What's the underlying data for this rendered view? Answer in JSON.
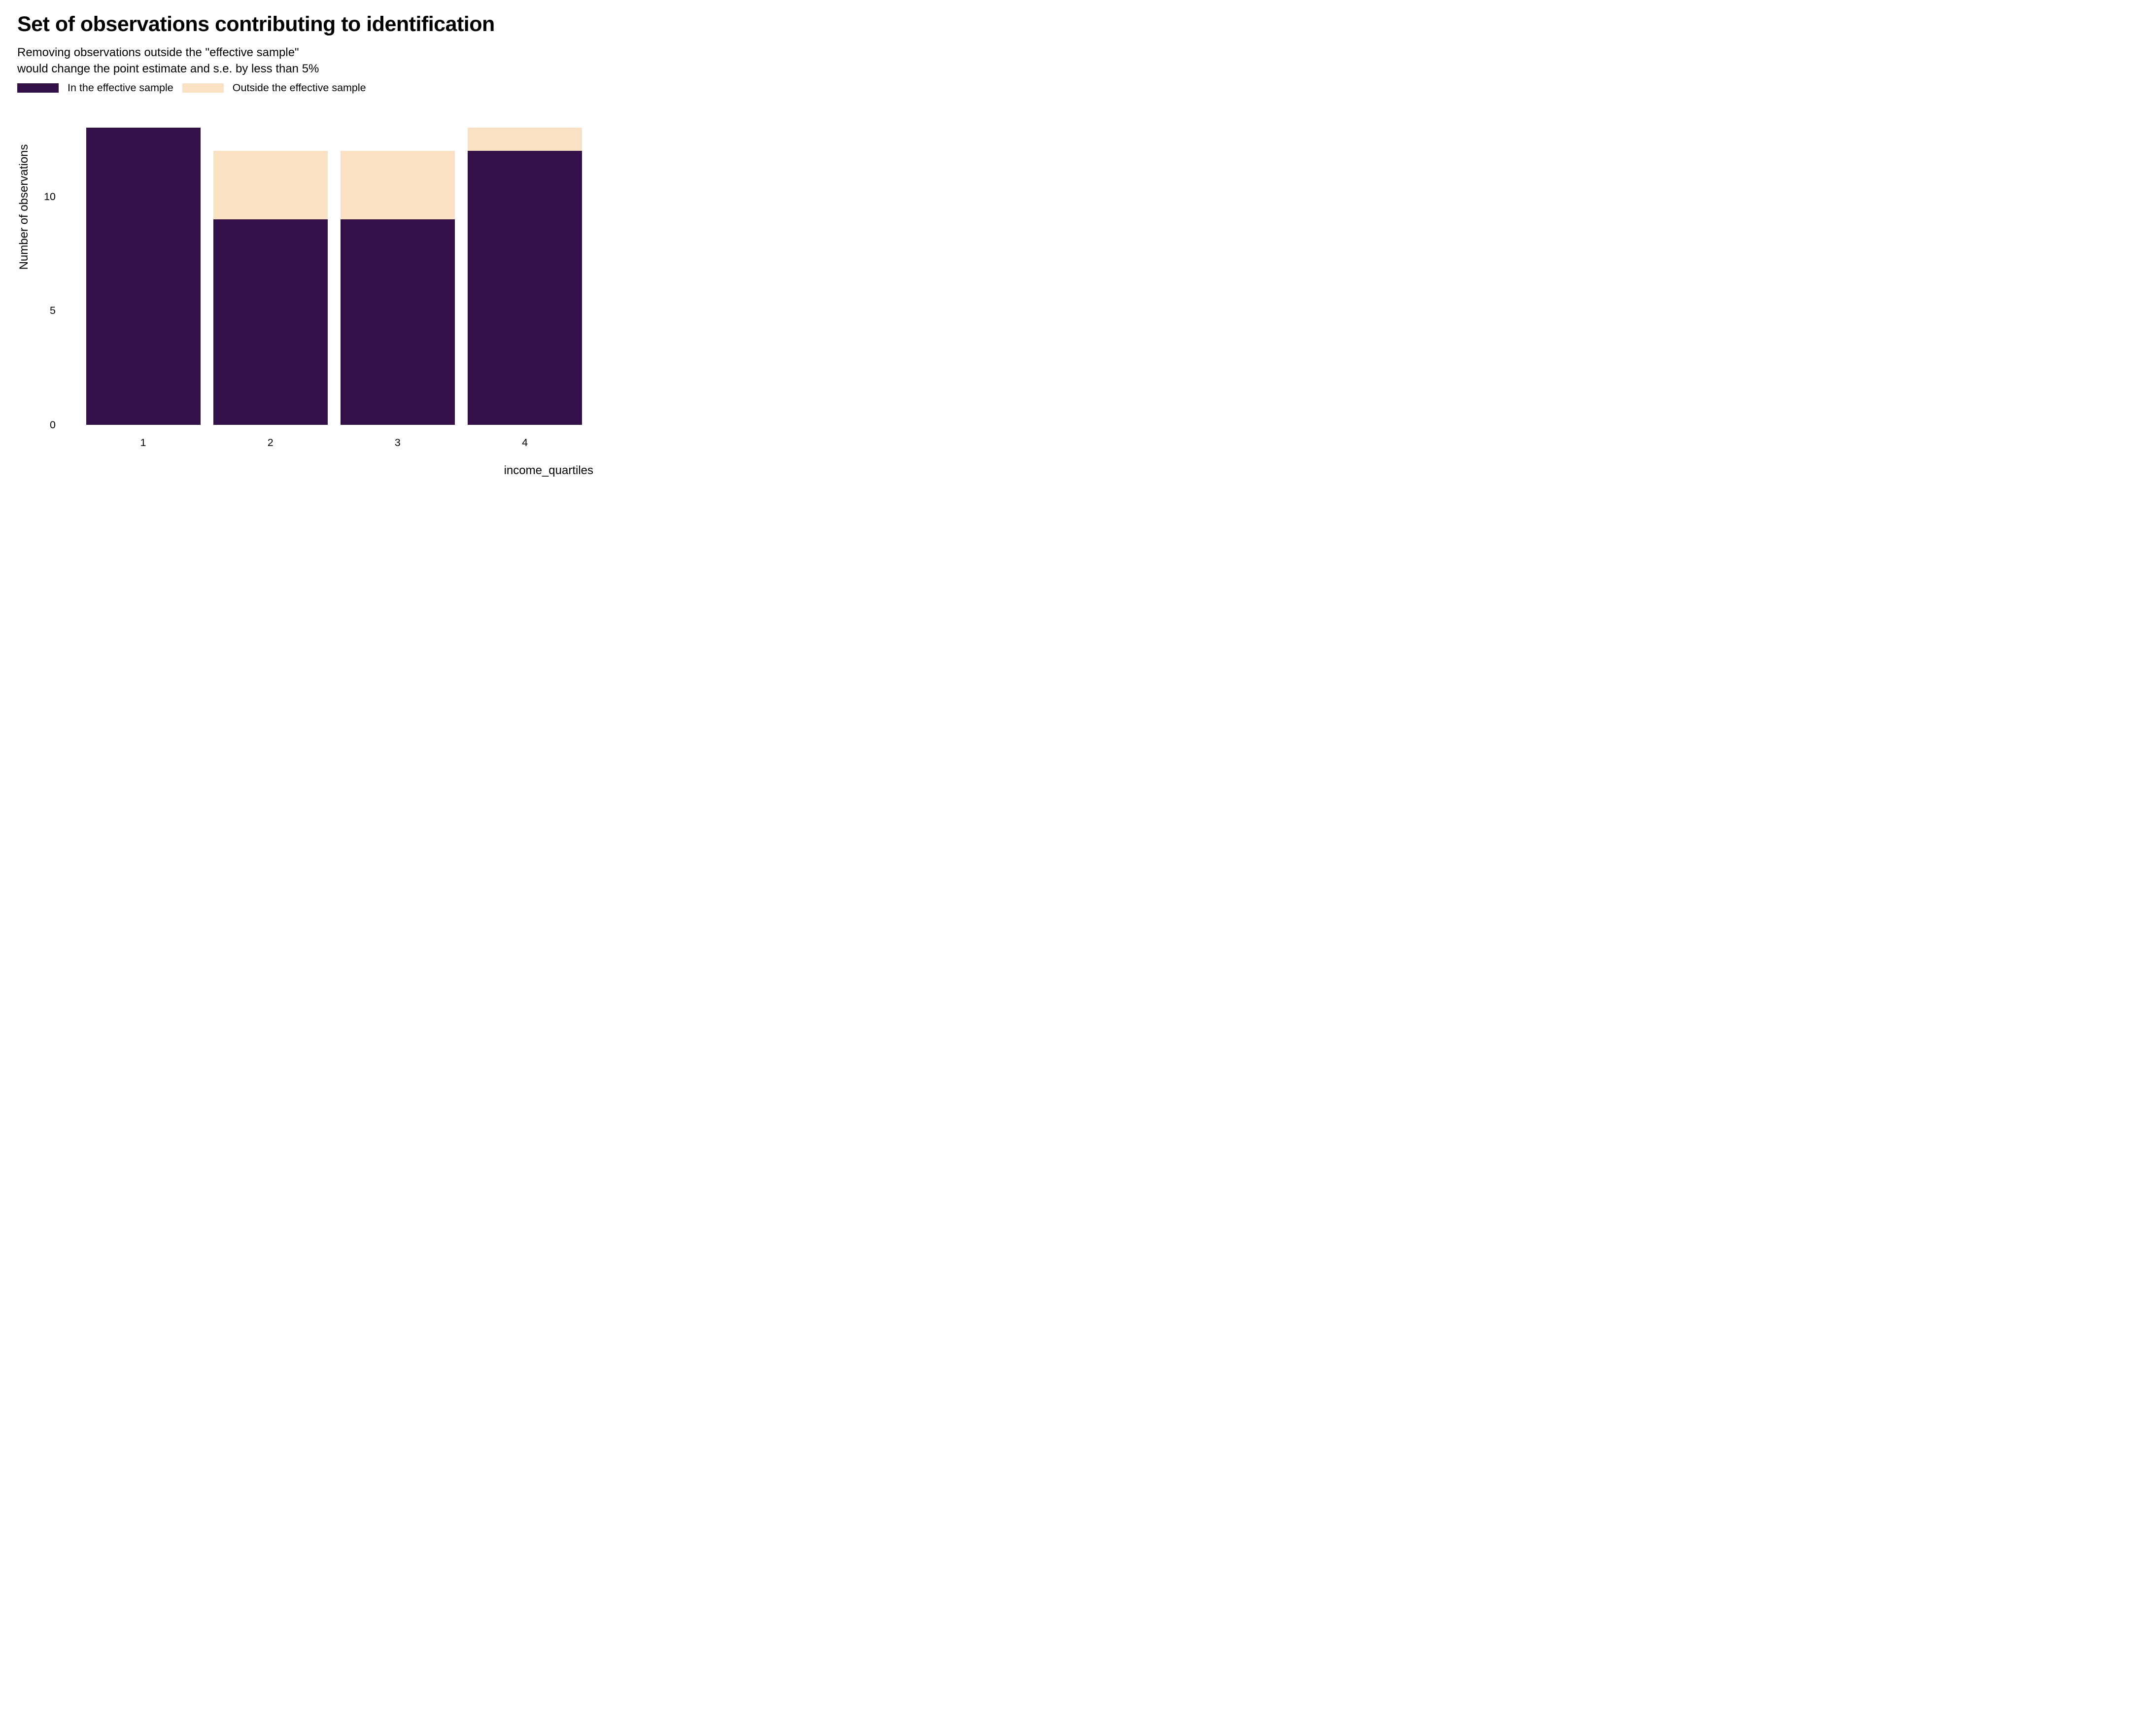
{
  "header": {
    "title": "Set of observations contributing to identification",
    "subtitle": "Removing observations outside the \"effective sample\"\nwould change the point estimate and s.e. by less than 5%"
  },
  "legend": {
    "items": [
      {
        "name": "in-effective-sample",
        "label": "In the effective sample",
        "color": "#331047"
      },
      {
        "name": "outside-effective-sample",
        "label": "Outside the effective sample",
        "color": "#FAE1C4"
      }
    ]
  },
  "chart_data": {
    "type": "bar",
    "stacked": true,
    "title": "Set of observations contributing to identification",
    "subtitle": "Removing observations outside the \"effective sample\" would change the point estimate and s.e. by less than 5%",
    "categories": [
      "1",
      "2",
      "3",
      "4"
    ],
    "series": [
      {
        "name": "In the effective sample",
        "color": "#331047",
        "values": [
          13,
          9,
          9,
          12
        ]
      },
      {
        "name": "Outside the effective sample",
        "color": "#FAE1C4",
        "values": [
          0,
          3,
          3,
          1
        ]
      }
    ],
    "totals": [
      13,
      12,
      12,
      13
    ],
    "xlabel": "income_quartiles",
    "ylabel": "Number of observations",
    "yticks": [
      0,
      5,
      10
    ],
    "ylim": [
      0,
      13
    ],
    "grid": false,
    "axis_lines": false,
    "legend_position": "top-left",
    "background": "#ffffff",
    "text_color": "#000000"
  }
}
